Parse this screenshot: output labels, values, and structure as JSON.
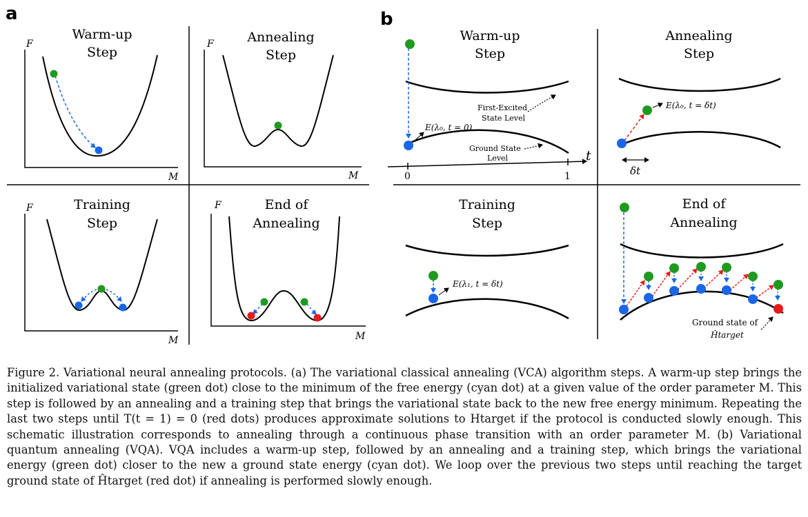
{
  "panel_a": {
    "letter": "a",
    "titles": {
      "warmup": [
        "Warm-up",
        "Step"
      ],
      "annealing": [
        "Annealing",
        "Step"
      ],
      "training": [
        "Training",
        "Step"
      ],
      "end": [
        "End of",
        "Annealing"
      ]
    },
    "axis_F": "F",
    "axis_M": "M"
  },
  "panel_b": {
    "letter": "b",
    "titles": {
      "warmup": [
        "Warm-up",
        "Step"
      ],
      "annealing": [
        "Annealing",
        "Step"
      ],
      "training": [
        "Training",
        "Step"
      ],
      "end": [
        "End of",
        "Annealing"
      ]
    },
    "axis_t": "t",
    "tick_0": "0",
    "tick_1": "1",
    "first_excited": [
      "First-Excited",
      "State Level"
    ],
    "ground_state": [
      "Ground State",
      "Level"
    ],
    "eq_warmup": "E(λ₀, t = 0)",
    "eq_anneal": "E(λ₀, t = δt)",
    "eq_train": "E(λ₁, t = δt)",
    "delta_t": "δt",
    "ground_target": [
      "Ground state of",
      "Ĥtarget"
    ]
  },
  "colors": {
    "green": "#1f9a1f",
    "blue": "#1a66e6",
    "red": "#e61a1a"
  },
  "caption": {
    "text": "Figure 2. Variational neural annealing protocols. (a) The variational classical annealing (VCA) algorithm steps. A warm-up step brings the initialized variational state (green dot) close to the minimum of the free energy (cyan dot) at a given value of the order parameter M. This step is followed by an annealing and a training step that brings the variational state back to the new free energy minimum. Repeating the last two steps until T(t = 1) = 0 (red dots) produces approximate solutions to Htarget if the protocol is conducted slowly enough. This schematic illustration corresponds to annealing through a continuous phase transition with an order parameter M. (b) Variational quantum annealing (VQA). VQA includes a warm-up step, followed by an annealing and a training step, which brings the variational energy (green dot) closer to the new a ground state energy (cyan dot). We loop over the previous two steps until reaching the target ground state of Ĥtarget (red dot) if annealing is performed slowly enough."
  }
}
